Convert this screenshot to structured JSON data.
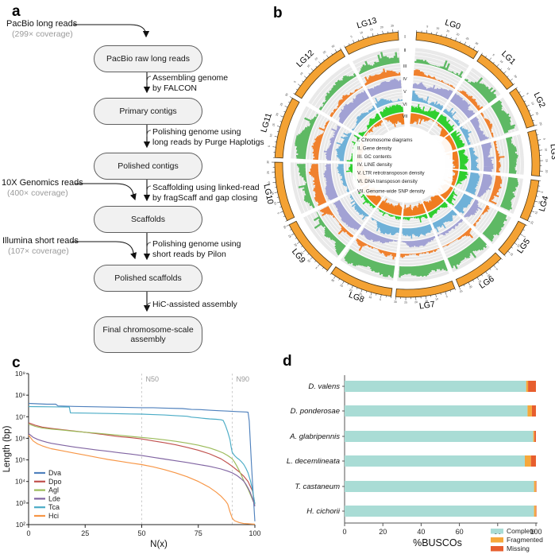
{
  "panel_labels": {
    "a": "a",
    "b": "b",
    "c": "c",
    "d": "d"
  },
  "flowchart": {
    "inputs": [
      {
        "name": "PacBio long reads",
        "coverage": "(299× coverage)"
      },
      {
        "name": "10X Genomics reads",
        "coverage": "(400× coverage)"
      },
      {
        "name": "Illumina short reads",
        "coverage": "(107× coverage)"
      }
    ],
    "boxes": [
      "PacBio raw long reads",
      "Primary contigs",
      "Polished contigs",
      "Scaffolds",
      "Polished scaffolds",
      "Final chromosome-scale assembly"
    ],
    "steps": [
      [
        "Assembling genome",
        "by FALCON"
      ],
      [
        "Polishing genome using",
        "long reads by Purge Haplotigs"
      ],
      [
        "Scaffolding using linked-read",
        "by fragScaff and gap closing"
      ],
      [
        "Polishing genome using",
        "short reads by Pilon"
      ],
      [
        "HiC-assisted assembly"
      ]
    ]
  },
  "circos": {
    "chromosomes": [
      {
        "name": "LG0",
        "span": 28
      },
      {
        "name": "LG1",
        "span": 19
      },
      {
        "name": "LG2",
        "span": 18
      },
      {
        "name": "LG3",
        "span": 20
      },
      {
        "name": "LG4",
        "span": 18
      },
      {
        "name": "LG5",
        "span": 16
      },
      {
        "name": "LG6",
        "span": 22
      },
      {
        "name": "LG7",
        "span": 26
      },
      {
        "name": "LG8",
        "span": 28
      },
      {
        "name": "LG9",
        "span": 26
      },
      {
        "name": "LG10",
        "span": 26
      },
      {
        "name": "LG11",
        "span": 27
      },
      {
        "name": "LG12",
        "span": 28
      },
      {
        "name": "LG13",
        "span": 24
      }
    ],
    "ring_labels": [
      "I",
      "II",
      "III",
      "IV",
      "V",
      "VI",
      "VII"
    ],
    "legend": [
      "I. Chromosome diagrams",
      "II. Gene density",
      "III. GC contents",
      "IV. LINE density",
      "V. LTR retrotransposon density",
      "VI. DNA transposon density",
      "VII. Genome-wide SNP density"
    ],
    "ideogram_color": "#f4a233",
    "tick_unit_mb": 5,
    "seed": 7,
    "rings": [
      {
        "id": "II",
        "track": "Gene density",
        "color": "#5eb964",
        "base": 0.12
      },
      {
        "id": "III",
        "track": "GC contents",
        "color": "#f0812e",
        "base": 0.38
      },
      {
        "id": "IV",
        "track": "LINE density",
        "color": "#a2a2d4",
        "base": 0.36
      },
      {
        "id": "V",
        "track": "LTR retrotransposon density",
        "color": "#6fb1d8",
        "base": 0.32
      },
      {
        "id": "VI",
        "track": "DNA transposon density",
        "color": "#2fcf2f",
        "base": 0.42
      },
      {
        "id": "VII",
        "track": "Genome-wide SNP density",
        "color": "#f07c20",
        "base": 0.6,
        "inward": true
      }
    ]
  },
  "chart_data": [
    {
      "type": "line",
      "title": "",
      "xlabel": "N(x)",
      "ylabel": "Length (bp)",
      "xlim": [
        0,
        100
      ],
      "x_ticks": [
        0,
        25,
        50,
        75,
        100
      ],
      "y_scale": "log10",
      "ylim_log10": [
        2,
        9
      ],
      "y_ticks_log10": [
        9,
        8,
        7,
        6,
        5,
        4,
        3,
        2
      ],
      "grid": false,
      "annotations": [
        {
          "text": "N50",
          "x": 50
        },
        {
          "text": "N90",
          "x": 90
        }
      ],
      "legend_position": "lower-left",
      "series": [
        {
          "name": "Dva",
          "color": "#4f81bd",
          "points": [
            [
              0,
              7.62
            ],
            [
              8,
              7.58
            ],
            [
              12,
              7.58
            ],
            [
              13,
              7.5
            ],
            [
              20,
              7.48
            ],
            [
              30,
              7.46
            ],
            [
              40,
              7.44
            ],
            [
              50,
              7.42
            ],
            [
              55,
              7.42
            ],
            [
              60,
              7.4
            ],
            [
              68,
              7.38
            ],
            [
              72,
              7.34
            ],
            [
              76,
              7.33
            ],
            [
              80,
              7.3
            ],
            [
              84,
              7.28
            ],
            [
              88,
              7.26
            ],
            [
              92,
              7.24
            ],
            [
              96,
              7.22
            ],
            [
              97,
              7.21
            ],
            [
              97.5,
              6.8
            ],
            [
              98,
              5.8
            ],
            [
              98.5,
              4.8
            ],
            [
              99,
              3.9
            ],
            [
              99.5,
              3.0
            ],
            [
              100,
              2.15
            ]
          ]
        },
        {
          "name": "Dpo",
          "color": "#c0504d",
          "points": [
            [
              0,
              6.72
            ],
            [
              3,
              6.6
            ],
            [
              6,
              6.52
            ],
            [
              10,
              6.46
            ],
            [
              15,
              6.4
            ],
            [
              20,
              6.34
            ],
            [
              25,
              6.28
            ],
            [
              30,
              6.22
            ],
            [
              35,
              6.15
            ],
            [
              40,
              6.08
            ],
            [
              45,
              6.03
            ],
            [
              50,
              5.97
            ],
            [
              55,
              5.88
            ],
            [
              60,
              5.8
            ],
            [
              65,
              5.7
            ],
            [
              70,
              5.58
            ],
            [
              75,
              5.45
            ],
            [
              80,
              5.28
            ],
            [
              85,
              5.05
            ],
            [
              88,
              4.85
            ],
            [
              90,
              4.7
            ],
            [
              93,
              4.45
            ],
            [
              95,
              4.25
            ],
            [
              97,
              4.0
            ],
            [
              99,
              3.55
            ],
            [
              100,
              2.95
            ]
          ]
        },
        {
          "name": "Agl",
          "color": "#9bbb59",
          "points": [
            [
              0,
              6.66
            ],
            [
              3,
              6.55
            ],
            [
              6,
              6.48
            ],
            [
              10,
              6.43
            ],
            [
              15,
              6.38
            ],
            [
              20,
              6.33
            ],
            [
              25,
              6.28
            ],
            [
              30,
              6.24
            ],
            [
              35,
              6.19
            ],
            [
              40,
              6.14
            ],
            [
              45,
              6.09
            ],
            [
              50,
              6.04
            ],
            [
              55,
              5.99
            ],
            [
              60,
              5.93
            ],
            [
              65,
              5.86
            ],
            [
              70,
              5.78
            ],
            [
              75,
              5.68
            ],
            [
              80,
              5.55
            ],
            [
              83,
              5.45
            ],
            [
              86,
              5.32
            ],
            [
              88,
              5.2
            ],
            [
              90,
              5.05
            ],
            [
              91,
              4.9
            ],
            [
              92,
              4.72
            ],
            [
              93,
              4.52
            ],
            [
              94,
              4.3
            ],
            [
              95,
              4.05
            ],
            [
              96,
              3.85
            ],
            [
              97,
              3.65
            ],
            [
              98,
              3.4
            ],
            [
              99,
              3.15
            ],
            [
              100,
              2.9
            ]
          ]
        },
        {
          "name": "Lde",
          "color": "#8064a2",
          "points": [
            [
              0,
              6.22
            ],
            [
              2,
              6.05
            ],
            [
              4,
              5.95
            ],
            [
              6,
              5.88
            ],
            [
              8,
              5.82
            ],
            [
              10,
              5.77
            ],
            [
              15,
              5.68
            ],
            [
              20,
              5.6
            ],
            [
              25,
              5.53
            ],
            [
              30,
              5.46
            ],
            [
              35,
              5.4
            ],
            [
              40,
              5.33
            ],
            [
              45,
              5.27
            ],
            [
              50,
              5.2
            ],
            [
              55,
              5.12
            ],
            [
              60,
              5.04
            ],
            [
              65,
              4.96
            ],
            [
              70,
              4.88
            ],
            [
              75,
              4.79
            ],
            [
              80,
              4.7
            ],
            [
              85,
              4.58
            ],
            [
              88,
              4.48
            ],
            [
              90,
              4.4
            ],
            [
              92,
              4.28
            ],
            [
              94,
              4.12
            ],
            [
              95,
              4.02
            ],
            [
              96,
              3.88
            ],
            [
              97,
              3.7
            ],
            [
              98,
              3.48
            ],
            [
              99,
              3.2
            ],
            [
              100,
              2.85
            ]
          ]
        },
        {
          "name": "Tca",
          "color": "#4bacc6",
          "points": [
            [
              0,
              7.47
            ],
            [
              10,
              7.46
            ],
            [
              18,
              7.45
            ],
            [
              18.5,
              7.18
            ],
            [
              25,
              7.17
            ],
            [
              35,
              7.15
            ],
            [
              45,
              7.13
            ],
            [
              50,
              7.12
            ],
            [
              55,
              7.1
            ],
            [
              60,
              7.08
            ],
            [
              65,
              7.05
            ],
            [
              70,
              7.02
            ],
            [
              72,
              6.98
            ],
            [
              75,
              6.95
            ],
            [
              78,
              6.92
            ],
            [
              80,
              6.9
            ],
            [
              83,
              6.88
            ],
            [
              85,
              6.86
            ],
            [
              86,
              6.83
            ],
            [
              87,
              6.6
            ],
            [
              88,
              6.3
            ],
            [
              89,
              5.95
            ],
            [
              89.5,
              5.6
            ],
            [
              90,
              5.35
            ],
            [
              91,
              5.2
            ],
            [
              92,
              5.1
            ],
            [
              93,
              5.02
            ],
            [
              94,
              4.92
            ],
            [
              95,
              4.8
            ],
            [
              96,
              4.62
            ],
            [
              97,
              4.4
            ],
            [
              98,
              4.05
            ],
            [
              99,
              3.6
            ],
            [
              100,
              2.95
            ]
          ]
        },
        {
          "name": "Hci",
          "color": "#f79646",
          "points": [
            [
              0,
              6.15
            ],
            [
              2,
              5.88
            ],
            [
              4,
              5.74
            ],
            [
              6,
              5.65
            ],
            [
              8,
              5.58
            ],
            [
              10,
              5.52
            ],
            [
              15,
              5.42
            ],
            [
              20,
              5.32
            ],
            [
              25,
              5.22
            ],
            [
              30,
              5.12
            ],
            [
              35,
              5.02
            ],
            [
              40,
              4.94
            ],
            [
              45,
              4.86
            ],
            [
              50,
              4.78
            ],
            [
              55,
              4.68
            ],
            [
              60,
              4.55
            ],
            [
              65,
              4.4
            ],
            [
              70,
              4.22
            ],
            [
              75,
              4.0
            ],
            [
              80,
              3.72
            ],
            [
              83,
              3.5
            ],
            [
              85,
              3.32
            ],
            [
              87,
              3.1
            ],
            [
              88,
              2.95
            ],
            [
              89,
              2.6
            ],
            [
              90,
              2.3
            ],
            [
              91,
              2.18
            ],
            [
              93,
              2.1
            ],
            [
              95,
              2.05
            ],
            [
              100,
              2.02
            ]
          ]
        }
      ]
    },
    {
      "type": "bar",
      "orientation": "horizontal",
      "stacked": true,
      "xlabel": "%BUSCOs",
      "xlim": [
        0,
        100
      ],
      "x_ticks": [
        0,
        20,
        40,
        60,
        80,
        100
      ],
      "categories": [
        "D. valens",
        "D. ponderosae",
        "A. glabripennis",
        "L. decemlineata",
        "T. castaneum",
        "H. cichorii"
      ],
      "legend_position": "bottom-right",
      "series": [
        {
          "name": "Complete",
          "color": "#a9dcd5",
          "values": [
            94.9,
            95.6,
            98.6,
            94.2,
            99.0,
            99.0
          ]
        },
        {
          "name": "Fragmented",
          "color": "#f6a83b",
          "values": [
            1.0,
            2.3,
            0.6,
            3.2,
            0.9,
            0.9
          ]
        },
        {
          "name": "Missing",
          "color": "#e75e2e",
          "values": [
            4.1,
            2.1,
            0.8,
            2.6,
            0.1,
            0.1
          ]
        }
      ]
    }
  ]
}
